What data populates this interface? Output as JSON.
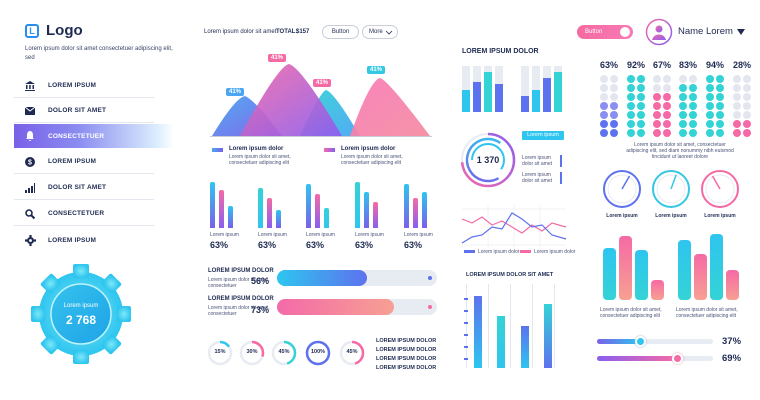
{
  "sidebar": {
    "logo_letter": "L",
    "logo_text": "Logo",
    "logo_desc": "Lorem ipsum dolor sit amet consectetuer adipiscing elit, sed",
    "items": [
      {
        "label": "LOREM IPSUM",
        "icon": "bank-icon"
      },
      {
        "label": "DOLOR SIT AMET",
        "icon": "mail-icon"
      },
      {
        "label": "CONSECTETUER",
        "icon": "bell-icon",
        "active": true
      },
      {
        "label": "LOREM IPSUM",
        "icon": "dollar-icon"
      },
      {
        "label": "DOLOR SIT AMET",
        "icon": "bar-chart-icon"
      },
      {
        "label": "CONSECTETUER",
        "icon": "search-icon"
      },
      {
        "label": "LOREM IPSUM",
        "icon": "gear-icon"
      }
    ],
    "gear_label": "Lorem ipsum",
    "gear_value": "2 768"
  },
  "header": {
    "text": "Lorem ipsum dolor sit amet",
    "total_label": "TOTAL:",
    "total_value": "$157",
    "button_label": "Button",
    "more_label": "More",
    "toggle_label": "Button",
    "user_name": "Name Lorem"
  },
  "peaks": {
    "labels": [
      "41%",
      "41%",
      "41%",
      "41%"
    ],
    "legend": [
      {
        "title": "Lorem ipsum dolor",
        "text": "Lorem ipsum dolor sit amet, consectetuer adipiscing elit"
      },
      {
        "title": "Lorem ipsum dolor",
        "text": "Lorem ipsum dolor sit amet, consectetuer adipiscing elit"
      }
    ]
  },
  "mini_bars": [
    {
      "label": "Lorem ipsum",
      "value": "63%"
    },
    {
      "label": "Lorem ipsum",
      "value": "63%"
    },
    {
      "label": "Lorem ipsum",
      "value": "63%"
    },
    {
      "label": "Lorem ipsum",
      "value": "63%"
    },
    {
      "label": "Lorem ipsum",
      "value": "63%"
    }
  ],
  "progress": [
    {
      "title": "LOREM IPSUM DOLOR",
      "text": "Lorem ipsum dolor sit amet, consectetuer",
      "value": "56%",
      "fill": 0.56
    },
    {
      "title": "LOREM IPSUM DOLOR",
      "text": "Lorem ipsum dolor sit amet, consectetuer",
      "value": "73%",
      "fill": 0.73
    }
  ],
  "rings": [
    {
      "label": "15%",
      "fill": 0.15
    },
    {
      "label": "30%",
      "fill": 0.3
    },
    {
      "label": "45%",
      "fill": 0.45
    },
    {
      "label": "100%",
      "fill": 1.0
    },
    {
      "label": "45%",
      "fill": 0.45
    }
  ],
  "list_items": [
    "LOREM IPSUM DOLOR",
    "LOREM IPSUM DOLOR",
    "LOREM IPSUM DOLOR",
    "LOREM IPSUM DOLOR"
  ],
  "middle": {
    "title": "LOREM IPSUM DOLOR",
    "donut_value": "1 370",
    "donut_button": "Lorem ipsum",
    "donut_legend": [
      "Lorem ipsum dolor sit amet",
      "Lorem ipsum dolor sit amet",
      "Lorem ipsum dolor sit amet"
    ],
    "line_legend": [
      "Lorem ipsum dolor",
      "Lorem ipsum dolor"
    ],
    "bars_title": "LOREM IPSUM DOLOR SIT AMET"
  },
  "dots": {
    "percents": [
      "63%",
      "92%",
      "67%",
      "83%",
      "94%",
      "28%"
    ],
    "text": "Lorem ipsum dolor sit amet, consectetuer adipiscing elit, sed diam nonummy nibh euismod tincidunt ut laoreet dolore"
  },
  "gauges": [
    "Lorem ipsum",
    "Lorem ipsum",
    "Lorem ipsum"
  ],
  "right_bars_text": [
    "Lorem ipsum dolor sit amet, consectetuer adipiscing elit",
    "Lorem ipsum dolor sit amet, consectetuer adipiscing elit"
  ],
  "sliders": [
    {
      "value": "37%",
      "fill": 0.37
    },
    {
      "value": "69%",
      "fill": 0.69
    }
  ],
  "colors": {
    "blue": "#2a8ef0",
    "pink": "#f76aa5",
    "teal": "#34d3d6",
    "purple": "#7a60e8",
    "navy": "#1e2a52"
  }
}
